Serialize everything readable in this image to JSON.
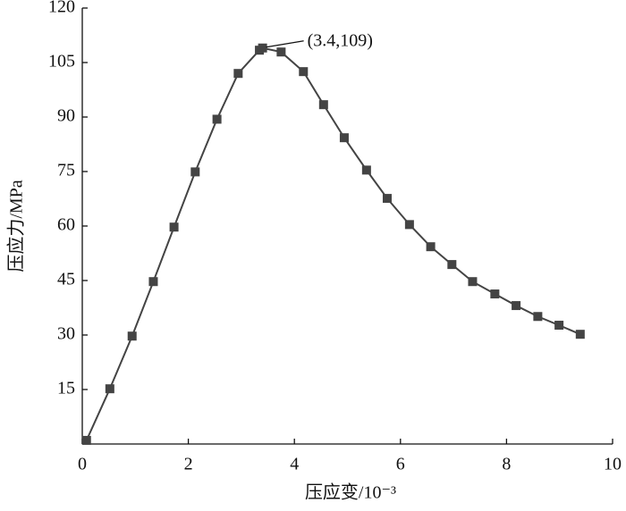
{
  "chart_data": {
    "type": "line",
    "x_label": "压应变/10⁻³",
    "y_label": "压应力/MPa",
    "annotation": "(3.4,109)",
    "x": [
      0.08,
      0.52,
      0.94,
      1.34,
      1.73,
      2.13,
      2.54,
      2.94,
      3.34,
      3.4,
      3.75,
      4.17,
      4.55,
      4.94,
      5.36,
      5.75,
      6.17,
      6.57,
      6.97,
      7.36,
      7.78,
      8.18,
      8.59,
      8.99,
      9.39
    ],
    "values": [
      1,
      15.2,
      29.7,
      44.7,
      59.7,
      74.9,
      89.4,
      102,
      108.4,
      109,
      107.9,
      102.5,
      93.4,
      84.3,
      75.4,
      67.6,
      60.4,
      54.3,
      49.4,
      44.7,
      41.3,
      38.1,
      35.1,
      32.7,
      30.2
    ],
    "color": "#444444",
    "xlim": [
      0,
      10
    ],
    "xticks": [
      0,
      2,
      4,
      6,
      8,
      10
    ],
    "ylim": [
      0,
      120
    ],
    "yticks": [
      15,
      30,
      45,
      60,
      75,
      90,
      105,
      120
    ]
  }
}
